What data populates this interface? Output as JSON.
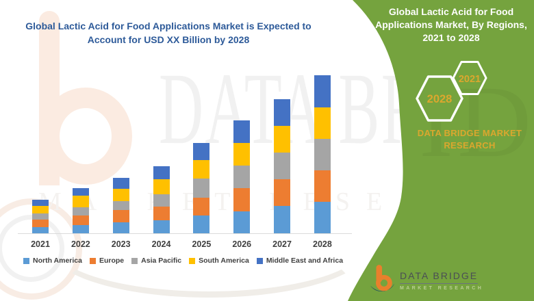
{
  "chart_panel": {
    "title": "Global Lactic Acid for Food Applications Market is Expected to Account for USD XX Billion by 2028",
    "title_color": "#2D5A99"
  },
  "chart_data": {
    "type": "bar",
    "stacked": true,
    "title": "Global Lactic Acid for Food Applications Market is Expected to Account for USD XX Billion by 2028",
    "categories": [
      "2021",
      "2022",
      "2023",
      "2024",
      "2025",
      "2026",
      "2027",
      "2028"
    ],
    "series": [
      {
        "name": "North America",
        "color": "#5B9BD5",
        "values": [
          9,
          12,
          16,
          19,
          26,
          32,
          40,
          46
        ]
      },
      {
        "name": "Europe",
        "color": "#ED7D31",
        "values": [
          11,
          14,
          18,
          20,
          26,
          34,
          39,
          46
        ]
      },
      {
        "name": "Asia Pacific",
        "color": "#A5A5A5",
        "values": [
          9,
          12,
          13,
          18,
          28,
          33,
          39,
          46
        ]
      },
      {
        "name": "South America",
        "color": "#FFC000",
        "values": [
          11,
          17,
          18,
          22,
          27,
          33,
          39,
          46
        ]
      },
      {
        "name": "Middle East and Africa",
        "color": "#4472C4",
        "values": [
          9,
          11,
          16,
          19,
          25,
          33,
          39,
          47
        ]
      }
    ],
    "xlabel": "",
    "ylabel": "",
    "y_axis_visible": false,
    "ylim": [
      0,
      240
    ],
    "units": "relative height; values unlabeled (USD XX Billion)",
    "grid": false,
    "legend_position": "bottom"
  },
  "right_panel": {
    "background_color": "#75A33E",
    "title": "Global Lactic Acid for Food Applications Market, By Regions, 2021 to 2028",
    "badges": [
      {
        "label": "2028"
      },
      {
        "label": "2021"
      }
    ],
    "caption": "DATA BRIDGE MARKET RESEARCH",
    "text_accent_color": "#DBA72E"
  },
  "logo": {
    "brand": "DATA BRIDGE",
    "tagline": "MARKET RESEARCH"
  },
  "watermark": {
    "letters": "DATA BRI",
    "row2": "MARKET RESEARCH"
  }
}
